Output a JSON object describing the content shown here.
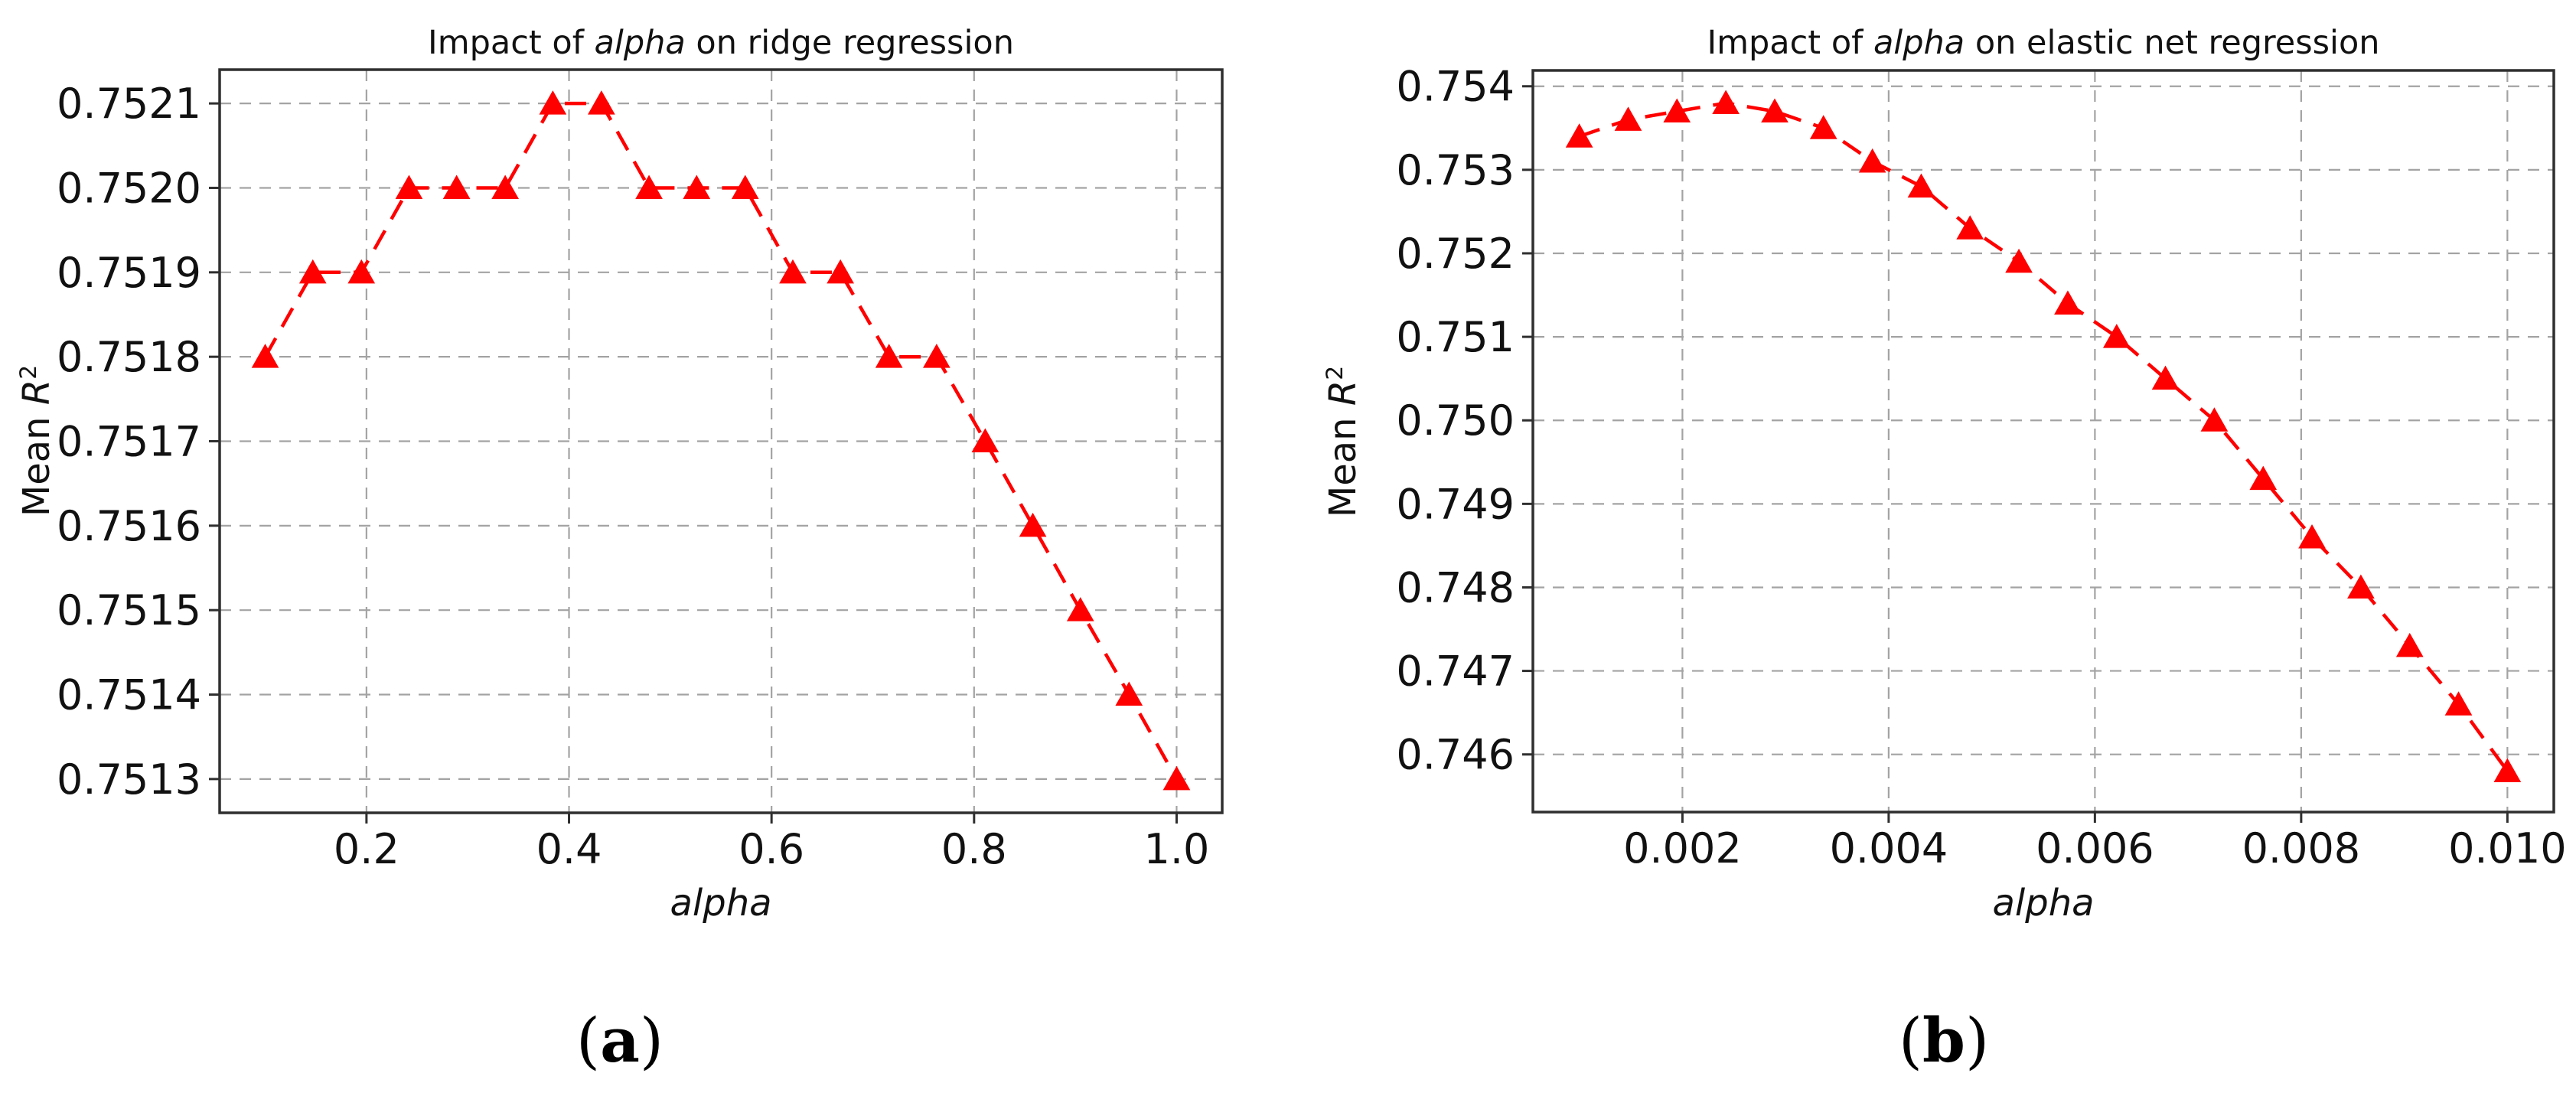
{
  "page": {
    "background": "#ffffff",
    "accent_red": "#ff0000",
    "grid_color": "#a3a3a3",
    "spine_color": "#2f2f2f",
    "text_color": "#111111"
  },
  "chart_data": [
    {
      "type": "line",
      "panel": "a",
      "title": "Impact of alpha on ridge regression",
      "title_parts": {
        "prefix": "Impact of ",
        "italic": "alpha",
        "suffix": " on ridge regression"
      },
      "xlabel": "alpha",
      "ylabel": "Mean R^2",
      "ylabel_parts": {
        "prefix": "Mean ",
        "italic": "R",
        "sup": "2"
      },
      "caption": {
        "open": "(",
        "letter": "a",
        "close": ")"
      },
      "legend": "none",
      "grid": true,
      "line_style": {
        "color": "#ff0000",
        "dash": "dashed",
        "marker": "triangle-up"
      },
      "xlim": [
        0.055,
        1.045
      ],
      "ylim": [
        0.75126,
        0.75214
      ],
      "xticks": {
        "values": [
          0.2,
          0.4,
          0.6,
          0.8,
          1.0
        ],
        "labels": [
          "0.2",
          "0.4",
          "0.6",
          "0.8",
          "1.0"
        ]
      },
      "yticks": {
        "values": [
          0.7513,
          0.7514,
          0.7515,
          0.7516,
          0.7517,
          0.7518,
          0.7519,
          0.752,
          0.7521
        ],
        "labels": [
          "0.7513",
          "0.7514",
          "0.7515",
          "0.7516",
          "0.7517",
          "0.7518",
          "0.7519",
          "0.7520",
          "0.7521"
        ]
      },
      "series": [
        {
          "name": "Mean R^2",
          "x": [
            0.1,
            0.147,
            0.195,
            0.242,
            0.289,
            0.337,
            0.384,
            0.432,
            0.479,
            0.526,
            0.574,
            0.621,
            0.668,
            0.716,
            0.763,
            0.811,
            0.858,
            0.905,
            0.953,
            1.0
          ],
          "y": [
            0.7518,
            0.7519,
            0.7519,
            0.752,
            0.752,
            0.752,
            0.7521,
            0.7521,
            0.752,
            0.752,
            0.752,
            0.7519,
            0.7519,
            0.7518,
            0.7518,
            0.7517,
            0.7516,
            0.7515,
            0.7514,
            0.7513
          ]
        }
      ]
    },
    {
      "type": "line",
      "panel": "b",
      "title": "Impact of alpha on elastic net regression",
      "title_parts": {
        "prefix": "Impact of ",
        "italic": "alpha",
        "suffix": " on elastic net regression"
      },
      "xlabel": "alpha",
      "ylabel": "Mean R^2",
      "ylabel_parts": {
        "prefix": "Mean ",
        "italic": "R",
        "sup": "2"
      },
      "caption": {
        "open": "(",
        "letter": "b",
        "close": ")"
      },
      "legend": "none",
      "grid": true,
      "line_style": {
        "color": "#ff0000",
        "dash": "dashed",
        "marker": "triangle-up"
      },
      "xlim": [
        0.00055,
        0.01045
      ],
      "ylim": [
        0.74531,
        0.75419
      ],
      "xticks": {
        "values": [
          0.002,
          0.004,
          0.006,
          0.008,
          0.01
        ],
        "labels": [
          "0.002",
          "0.004",
          "0.006",
          "0.008",
          "0.010"
        ]
      },
      "yticks": {
        "values": [
          0.746,
          0.747,
          0.748,
          0.749,
          0.75,
          0.751,
          0.752,
          0.753,
          0.754
        ],
        "labels": [
          "0.746",
          "0.747",
          "0.748",
          "0.749",
          "0.750",
          "0.751",
          "0.752",
          "0.753",
          "0.754"
        ]
      },
      "series": [
        {
          "name": "Mean R^2",
          "x": [
            0.001,
            0.001474,
            0.001947,
            0.002421,
            0.002895,
            0.003368,
            0.003842,
            0.004316,
            0.004789,
            0.005263,
            0.005737,
            0.006211,
            0.006684,
            0.007158,
            0.007632,
            0.008105,
            0.008579,
            0.009053,
            0.009526,
            0.01
          ],
          "y": [
            0.7534,
            0.7536,
            0.7537,
            0.7538,
            0.7537,
            0.7535,
            0.7531,
            0.7528,
            0.7523,
            0.7519,
            0.7514,
            0.751,
            0.7505,
            0.75,
            0.7493,
            0.7486,
            0.748,
            0.7473,
            0.7466,
            0.7458
          ]
        }
      ]
    }
  ]
}
